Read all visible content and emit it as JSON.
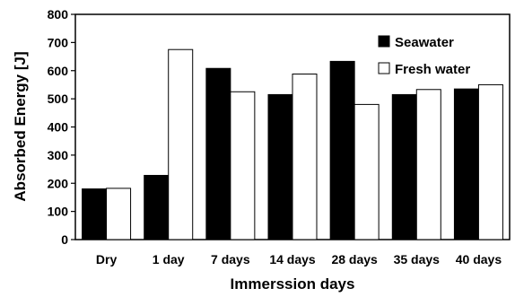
{
  "chart_data": {
    "type": "bar",
    "title": "",
    "xlabel": "Immerssion days",
    "ylabel": "Absorbed Energy [J]",
    "ylim": [
      0,
      800
    ],
    "yticks": [
      "0",
      "100",
      "200",
      "300",
      "400",
      "500",
      "600",
      "700",
      "800"
    ],
    "categories": [
      "Dry",
      "1 day",
      "7 days",
      "14 days",
      "28 days",
      "35 days",
      "40 days"
    ],
    "series": [
      {
        "name": "Seawater",
        "color": "#000000",
        "values": [
          180,
          228,
          608,
          515,
          633,
          515,
          535
        ]
      },
      {
        "name": "Fresh water",
        "color": "#ffffff",
        "values": [
          182,
          675,
          525,
          588,
          480,
          533,
          550
        ]
      }
    ],
    "legend_position": "top-right",
    "grid": false
  }
}
